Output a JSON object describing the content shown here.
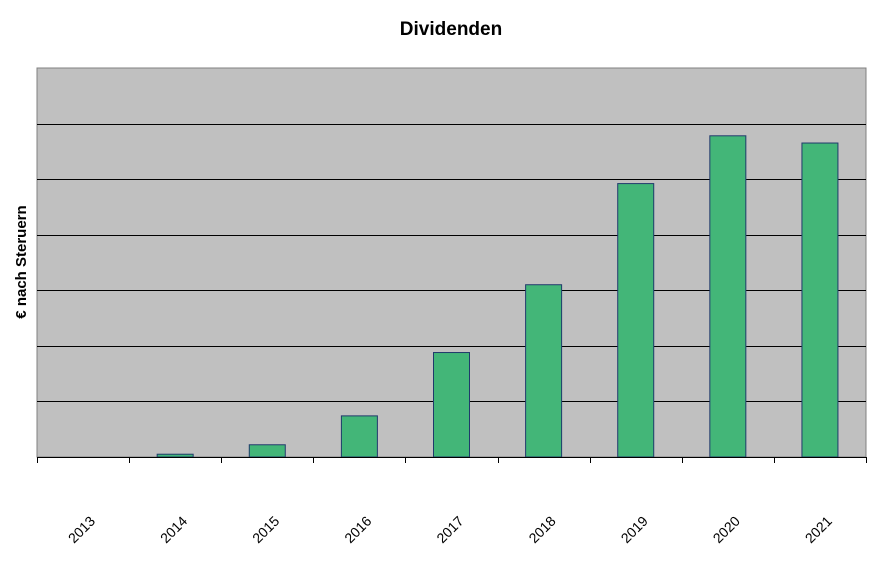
{
  "chart_data": {
    "type": "bar",
    "title": "Dividenden",
    "xlabel": "",
    "ylabel": "€ nach Steruern",
    "categories": [
      "2013",
      "2014",
      "2015",
      "2016",
      "2017",
      "2018",
      "2019",
      "2020",
      "2021"
    ],
    "values": [
      0,
      0.05,
      0.22,
      0.74,
      1.88,
      3.1,
      4.92,
      5.78,
      5.65
    ],
    "ylim": [
      0,
      7
    ],
    "grid": true,
    "legend": "none",
    "colors": {
      "plot_background": "#c0c0c0",
      "bar_fill": "#43b678",
      "bar_stroke": "#1f3a6b",
      "gridline": "#000000"
    }
  }
}
